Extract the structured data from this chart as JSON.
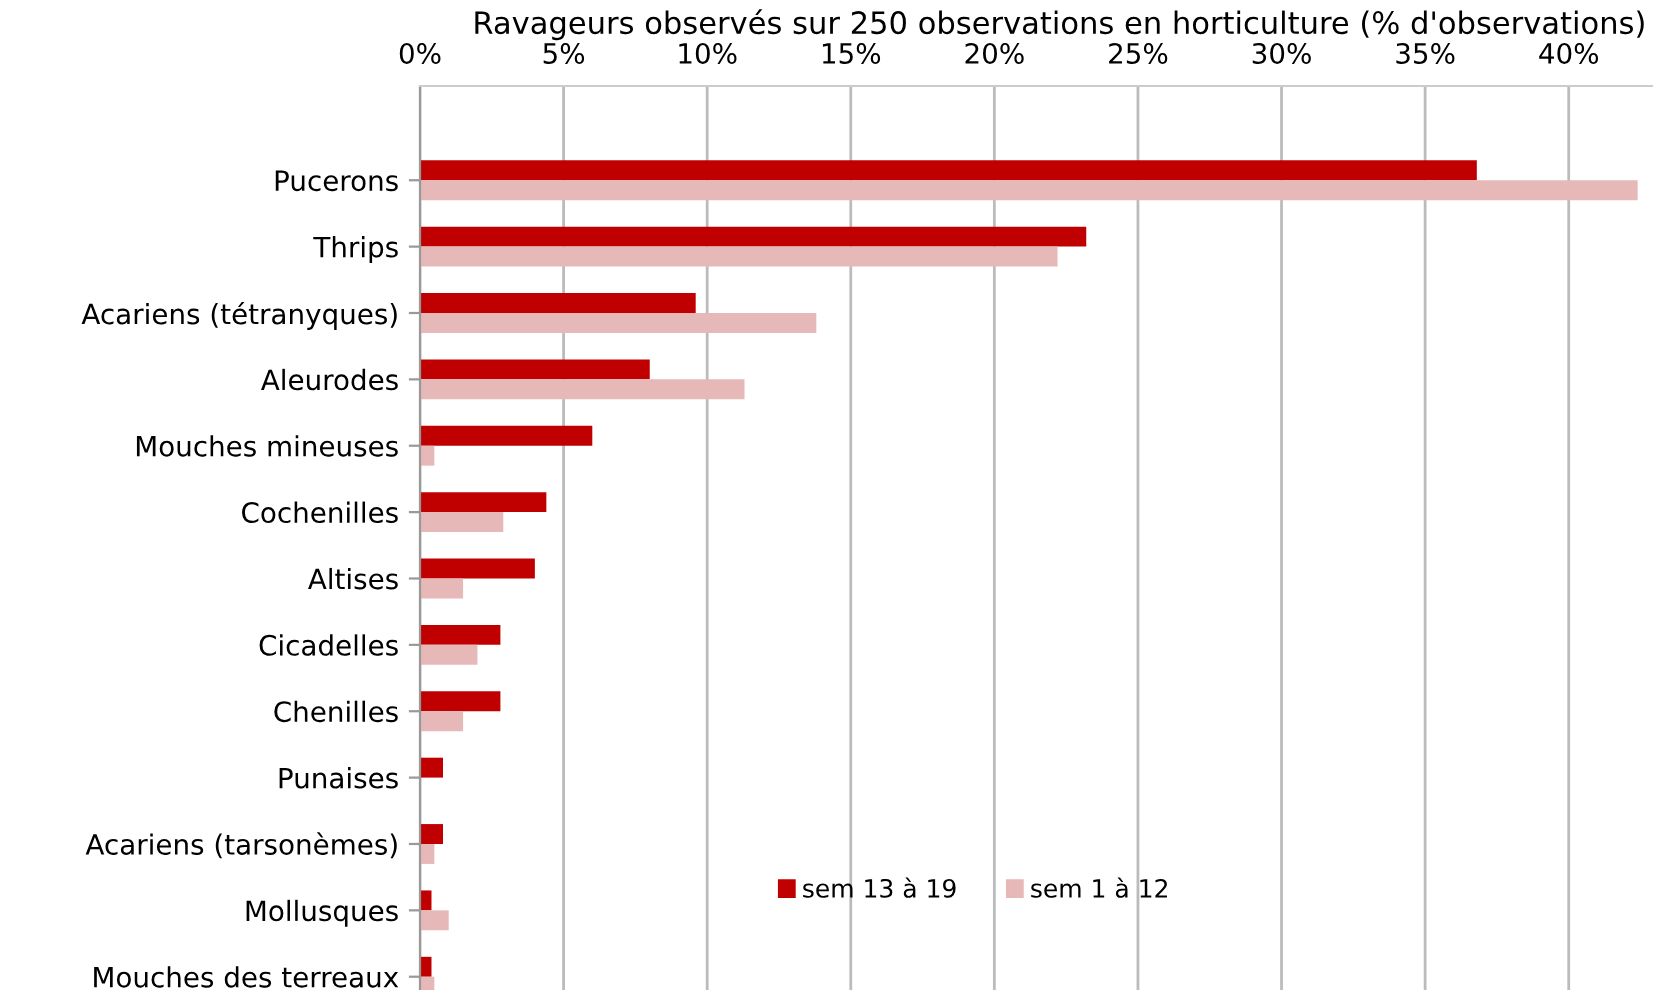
{
  "chart_data": {
    "type": "bar",
    "orientation": "horizontal",
    "title": "Ravageurs observés sur 250 observations en horticulture (% d'observations)",
    "categories": [
      "Pucerons",
      "Thrips",
      "Acariens (tétranyques)",
      "Aleurodes",
      "Mouches mineuses",
      "Cochenilles",
      "Altises",
      "Cicadelles",
      "Chenilles",
      "Punaises",
      "Acariens (tarsonèmes)",
      "Mollusques",
      "Mouches des terreaux"
    ],
    "series": [
      {
        "name": "sem 13 à 19",
        "color": "#c00000",
        "values": [
          36.8,
          23.2,
          9.6,
          8.0,
          6.0,
          4.4,
          4.0,
          2.8,
          2.8,
          0.8,
          0.8,
          0.4,
          0.4
        ]
      },
      {
        "name": "sem 1 à 12",
        "color": "#e6b8b7",
        "values": [
          42.4,
          22.2,
          13.8,
          11.3,
          0.5,
          2.9,
          1.5,
          2.0,
          1.5,
          0,
          0.5,
          1.0,
          0.5
        ]
      }
    ],
    "xlim": [
      0,
      42.9
    ],
    "xticks": [
      {
        "value": 0,
        "label": "0%"
      },
      {
        "value": 5,
        "label": "5%"
      },
      {
        "value": 10,
        "label": "10%"
      },
      {
        "value": 15,
        "label": "15%"
      },
      {
        "value": 20,
        "label": "20%"
      },
      {
        "value": 25,
        "label": "25%"
      },
      {
        "value": 30,
        "label": "30%"
      },
      {
        "value": 35,
        "label": "35%"
      },
      {
        "value": 40,
        "label": "40%"
      }
    ],
    "grid": "x",
    "legend": "bottom"
  }
}
